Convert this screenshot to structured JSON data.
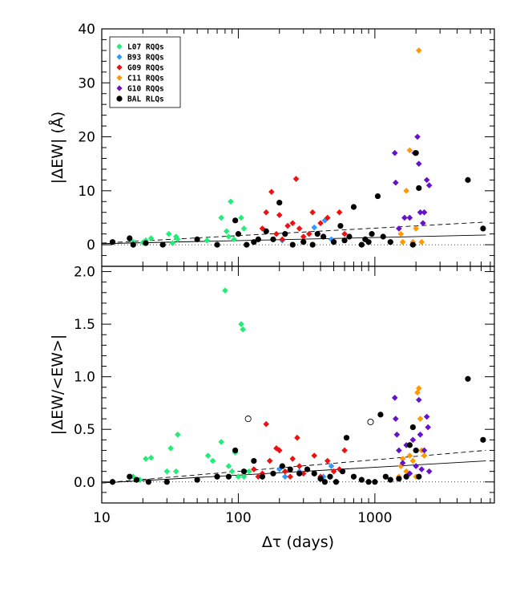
{
  "chart_data": [
    {
      "type": "scatter",
      "panel": "top",
      "xlabel": "",
      "ylabel": "|ΔEW| (Å)",
      "xscale": "log",
      "xlim": [
        10,
        7500
      ],
      "ylim": [
        -4,
        40
      ],
      "xticks": [
        10,
        100,
        1000
      ],
      "xtick_labels": [
        "",
        "",
        ""
      ],
      "yticks": [
        0,
        10,
        20,
        30,
        40
      ],
      "ytick_labels": [
        "0",
        "10",
        "20",
        "30",
        "40"
      ],
      "legend_position": "top-left",
      "series": [
        {
          "name": "L07 RQQs",
          "color": "#22ee77",
          "marker": "diamond",
          "points": [
            [
              17,
              0.5
            ],
            [
              20,
              0.4
            ],
            [
              21,
              0.8
            ],
            [
              23,
              1.2
            ],
            [
              31,
              2.0
            ],
            [
              33,
              0.3
            ],
            [
              35,
              1.5
            ],
            [
              36,
              1.0
            ],
            [
              59,
              0.8
            ],
            [
              75,
              5.0
            ],
            [
              82,
              2.5
            ],
            [
              85,
              1.5
            ],
            [
              88,
              8.0
            ],
            [
              93,
              1.0
            ],
            [
              100,
              2.0
            ],
            [
              105,
              5.0
            ],
            [
              110,
              3.0
            ]
          ]
        },
        {
          "name": "B93 RQQs",
          "color": "#3399ff",
          "marker": "diamond",
          "points": [
            [
              210,
              0.8
            ],
            [
              360,
              3.2
            ],
            [
              430,
              4.5
            ],
            [
              480,
              1.0
            ]
          ]
        },
        {
          "name": "G09 RQQs",
          "color": "#ee1111",
          "marker": "diamond",
          "points": [
            [
              150,
              3.0
            ],
            [
              160,
              6.0
            ],
            [
              175,
              9.8
            ],
            [
              190,
              2.0
            ],
            [
              200,
              5.5
            ],
            [
              210,
              1.0
            ],
            [
              230,
              3.5
            ],
            [
              250,
              4.0
            ],
            [
              265,
              12.2
            ],
            [
              280,
              3.0
            ],
            [
              300,
              1.5
            ],
            [
              330,
              2.0
            ],
            [
              350,
              6.0
            ],
            [
              400,
              4.0
            ],
            [
              450,
              5.0
            ],
            [
              550,
              6.0
            ],
            [
              600,
              2.0
            ]
          ]
        },
        {
          "name": "C11 RQQs",
          "color": "#ff9900",
          "marker": "diamond",
          "points": [
            [
              1550,
              2.0
            ],
            [
              1600,
              0.5
            ],
            [
              1700,
              10.0
            ],
            [
              1800,
              17.5
            ],
            [
              1900,
              0.5
            ],
            [
              2000,
              3.0
            ],
            [
              2100,
              36.0
            ],
            [
              2200,
              0.5
            ],
            [
              2300,
              6.0
            ]
          ]
        },
        {
          "name": "G10 RQQs",
          "color": "#6611cc",
          "marker": "diamond",
          "points": [
            [
              1400,
              17.0
            ],
            [
              1420,
              11.5
            ],
            [
              1500,
              3.0
            ],
            [
              1650,
              5.0
            ],
            [
              1800,
              5.0
            ],
            [
              1950,
              17.0
            ],
            [
              2050,
              20.0
            ],
            [
              2100,
              15.0
            ],
            [
              2150,
              6.0
            ],
            [
              2250,
              4.0
            ],
            [
              2300,
              6.0
            ],
            [
              2400,
              12.0
            ],
            [
              2500,
              11.0
            ]
          ]
        },
        {
          "name": "BAL RLQs",
          "color": "#000000",
          "marker": "circle",
          "points": [
            [
              12,
              0.5
            ],
            [
              16,
              1.2
            ],
            [
              17,
              0.0
            ],
            [
              21,
              0.3
            ],
            [
              28,
              0.0
            ],
            [
              50,
              1.0
            ],
            [
              70,
              0.0
            ],
            [
              95,
              4.5
            ],
            [
              100,
              2.0
            ],
            [
              115,
              0.0
            ],
            [
              130,
              0.5
            ],
            [
              140,
              1.0
            ],
            [
              160,
              2.5
            ],
            [
              180,
              1.0
            ],
            [
              200,
              7.8
            ],
            [
              220,
              2.0
            ],
            [
              250,
              0.0
            ],
            [
              300,
              0.5
            ],
            [
              350,
              0.0
            ],
            [
              380,
              2.0
            ],
            [
              420,
              1.5
            ],
            [
              500,
              0.5
            ],
            [
              560,
              3.5
            ],
            [
              600,
              0.8
            ],
            [
              650,
              1.5
            ],
            [
              700,
              7.0
            ],
            [
              800,
              0.0
            ],
            [
              850,
              1.0
            ],
            [
              900,
              0.5
            ],
            [
              950,
              2.0
            ],
            [
              1050,
              9.0
            ],
            [
              1150,
              1.5
            ],
            [
              1300,
              0.5
            ],
            [
              1900,
              0.0
            ],
            [
              2000,
              17.0
            ],
            [
              2100,
              10.5
            ],
            [
              4800,
              12.0
            ],
            [
              6200,
              3.0
            ]
          ]
        }
      ],
      "fit_lines": [
        {
          "style": "dashed",
          "points": [
            [
              10,
              0.3
            ],
            [
              6500,
              4.2
            ]
          ]
        },
        {
          "style": "solid",
          "points": [
            [
              10,
              0.2
            ],
            [
              6500,
              1.8
            ]
          ]
        },
        {
          "style": "dotted",
          "points": [
            [
              10,
              0
            ],
            [
              7500,
              0
            ]
          ]
        }
      ]
    },
    {
      "type": "scatter",
      "panel": "bottom",
      "xlabel": "Δτ (days)",
      "ylabel": "|ΔEW/<EW>|",
      "xscale": "log",
      "xlim": [
        10,
        7500
      ],
      "ylim": [
        -0.2,
        2.05
      ],
      "xticks": [
        10,
        100,
        1000
      ],
      "xtick_labels": [
        "10",
        "100",
        "1000"
      ],
      "yticks": [
        0.0,
        0.5,
        1.0,
        1.5,
        2.0
      ],
      "ytick_labels": [
        "0.0",
        "0.5",
        "1.0",
        "1.5",
        "2.0"
      ],
      "series": [
        {
          "name": "L07 RQQs",
          "color": "#22ee77",
          "marker": "diamond",
          "points": [
            [
              17,
              0.05
            ],
            [
              19,
              0.02
            ],
            [
              21,
              0.22
            ],
            [
              23,
              0.23
            ],
            [
              30,
              0.1
            ],
            [
              32,
              0.32
            ],
            [
              35,
              0.1
            ],
            [
              36,
              0.45
            ],
            [
              60,
              0.25
            ],
            [
              65,
              0.2
            ],
            [
              75,
              0.38
            ],
            [
              80,
              1.82
            ],
            [
              85,
              0.15
            ],
            [
              90,
              0.1
            ],
            [
              95,
              0.28
            ],
            [
              100,
              0.05
            ],
            [
              105,
              1.5
            ],
            [
              108,
              1.45
            ],
            [
              110,
              0.05
            ],
            [
              120,
              0.1
            ]
          ]
        },
        {
          "name": "B93 RQQs",
          "color": "#3399ff",
          "marker": "diamond",
          "points": [
            [
              200,
              0.12
            ],
            [
              220,
              0.05
            ],
            [
              280,
              0.1
            ],
            [
              360,
              0.08
            ],
            [
              420,
              0.05
            ],
            [
              480,
              0.15
            ]
          ]
        },
        {
          "name": "G09 RQQs",
          "color": "#ee1111",
          "marker": "diamond",
          "points": [
            [
              130,
              0.12
            ],
            [
              140,
              0.05
            ],
            [
              150,
              0.08
            ],
            [
              160,
              0.55
            ],
            [
              170,
              0.2
            ],
            [
              190,
              0.32
            ],
            [
              200,
              0.3
            ],
            [
              220,
              0.1
            ],
            [
              240,
              0.05
            ],
            [
              250,
              0.22
            ],
            [
              270,
              0.42
            ],
            [
              280,
              0.15
            ],
            [
              300,
              0.08
            ],
            [
              320,
              0.12
            ],
            [
              360,
              0.25
            ],
            [
              400,
              0.05
            ],
            [
              450,
              0.2
            ],
            [
              500,
              0.1
            ],
            [
              550,
              0.12
            ],
            [
              600,
              0.3
            ]
          ]
        },
        {
          "name": "C11 RQQs",
          "color": "#ff9900",
          "marker": "diamond",
          "points": [
            [
              1500,
              0.05
            ],
            [
              1550,
              0.15
            ],
            [
              1600,
              0.22
            ],
            [
              1700,
              0.1
            ],
            [
              1800,
              0.25
            ],
            [
              1900,
              0.2
            ],
            [
              2000,
              0.05
            ],
            [
              2050,
              0.85
            ],
            [
              2100,
              0.89
            ],
            [
              2150,
              0.6
            ],
            [
              2200,
              0.3
            ],
            [
              2300,
              0.25
            ]
          ]
        },
        {
          "name": "G10 RQQs",
          "color": "#6611cc",
          "marker": "diamond",
          "points": [
            [
              1400,
              0.8
            ],
            [
              1420,
              0.6
            ],
            [
              1450,
              0.45
            ],
            [
              1500,
              0.3
            ],
            [
              1600,
              0.18
            ],
            [
              1700,
              0.35
            ],
            [
              1800,
              0.08
            ],
            [
              1900,
              0.4
            ],
            [
              2000,
              0.15
            ],
            [
              2100,
              0.78
            ],
            [
              2150,
              0.45
            ],
            [
              2200,
              0.12
            ],
            [
              2300,
              0.3
            ],
            [
              2400,
              0.62
            ],
            [
              2450,
              0.52
            ],
            [
              2500,
              0.1
            ]
          ]
        },
        {
          "name": "BAL RLQs",
          "color": "#000000",
          "marker": "circle",
          "points": [
            [
              12,
              0.0
            ],
            [
              16,
              0.05
            ],
            [
              18,
              0.02
            ],
            [
              22,
              0.0
            ],
            [
              30,
              0.0
            ],
            [
              50,
              0.02
            ],
            [
              70,
              0.05
            ],
            [
              85,
              0.05
            ],
            [
              95,
              0.3
            ],
            [
              110,
              0.1
            ],
            [
              130,
              0.2
            ],
            [
              150,
              0.05
            ],
            [
              180,
              0.08
            ],
            [
              210,
              0.15
            ],
            [
              240,
              0.12
            ],
            [
              280,
              0.08
            ],
            [
              320,
              0.12
            ],
            [
              360,
              0.08
            ],
            [
              400,
              0.03
            ],
            [
              430,
              0.0
            ],
            [
              470,
              0.05
            ],
            [
              520,
              0.0
            ],
            [
              580,
              0.1
            ],
            [
              620,
              0.42
            ],
            [
              700,
              0.05
            ],
            [
              800,
              0.02
            ],
            [
              900,
              0.0
            ],
            [
              1000,
              0.0
            ],
            [
              1100,
              0.64
            ],
            [
              1200,
              0.05
            ],
            [
              1300,
              0.02
            ],
            [
              1500,
              0.03
            ],
            [
              1700,
              0.05
            ],
            [
              1800,
              0.35
            ],
            [
              1900,
              0.52
            ],
            [
              2000,
              0.3
            ],
            [
              2100,
              0.05
            ],
            [
              4800,
              0.98
            ],
            [
              6200,
              0.4
            ]
          ]
        },
        {
          "name": "open",
          "color": "#000000",
          "marker": "open-circle",
          "points": [
            [
              118,
              0.6
            ],
            [
              930,
              0.57
            ]
          ]
        }
      ],
      "fit_lines": [
        {
          "style": "dashed",
          "points": [
            [
              10,
              -0.01
            ],
            [
              6500,
              0.3
            ]
          ]
        },
        {
          "style": "solid",
          "points": [
            [
              10,
              -0.01
            ],
            [
              6500,
              0.2
            ]
          ]
        },
        {
          "style": "dotted",
          "points": [
            [
              10,
              0
            ],
            [
              7500,
              0
            ]
          ]
        }
      ]
    }
  ]
}
